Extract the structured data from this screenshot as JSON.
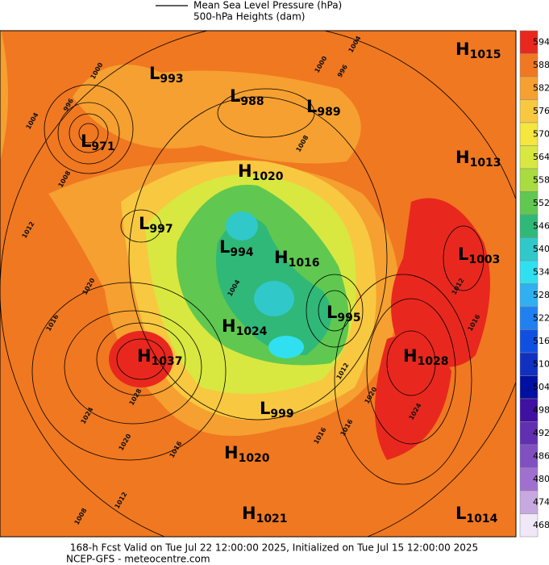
{
  "header": {
    "legend_lines": [
      "Mean Sea Level Pressure (hPa)",
      "500-hPa Heights (dam)"
    ]
  },
  "footer": {
    "lines": [
      "168-h Fcst Valid on Tue Jul 22 12:00:00 2025, Initialized on Tue Jul 15 12:00:00 2025",
      "NCEP-GFS - meteocentre.com"
    ]
  },
  "colorbar": [
    {
      "value": 594,
      "color": "#e8281e"
    },
    {
      "value": 588,
      "color": "#f07820"
    },
    {
      "value": 582,
      "color": "#f5a030"
    },
    {
      "value": 576,
      "color": "#f8c840"
    },
    {
      "value": 570,
      "color": "#f5e640"
    },
    {
      "value": 564,
      "color": "#d8e840"
    },
    {
      "value": 558,
      "color": "#a8dc40"
    },
    {
      "value": 552,
      "color": "#60c850"
    },
    {
      "value": 546,
      "color": "#30b878"
    },
    {
      "value": 540,
      "color": "#30c8c8"
    },
    {
      "value": 534,
      "color": "#30e0f0"
    },
    {
      "value": 528,
      "color": "#30b0f0"
    },
    {
      "value": 522,
      "color": "#2080f0"
    },
    {
      "value": 516,
      "color": "#1050e0"
    },
    {
      "value": 510,
      "color": "#1030c0"
    },
    {
      "value": 504,
      "color": "#0010a0"
    },
    {
      "value": 498,
      "color": "#4010a0"
    },
    {
      "value": 492,
      "color": "#6030b0"
    },
    {
      "value": 486,
      "color": "#8050c0"
    },
    {
      "value": 480,
      "color": "#a070d0"
    },
    {
      "value": 474,
      "color": "#c8a8e0"
    },
    {
      "value": 468,
      "color": "#f0e8f8"
    }
  ],
  "centers": [
    {
      "kind": "H",
      "value": 1015
    },
    {
      "kind": "L",
      "value": 993
    },
    {
      "kind": "L",
      "value": 988
    },
    {
      "kind": "L",
      "value": 989
    },
    {
      "kind": "L",
      "value": 971
    },
    {
      "kind": "H",
      "value": 1013
    },
    {
      "kind": "H",
      "value": 1020
    },
    {
      "kind": "L",
      "value": 997
    },
    {
      "kind": "L",
      "value": 994
    },
    {
      "kind": "H",
      "value": 1016
    },
    {
      "kind": "L",
      "value": 1003
    },
    {
      "kind": "L",
      "value": 995
    },
    {
      "kind": "H",
      "value": 1024
    },
    {
      "kind": "H",
      "value": 1037
    },
    {
      "kind": "H",
      "value": 1028
    },
    {
      "kind": "L",
      "value": 999
    },
    {
      "kind": "H",
      "value": 1020
    },
    {
      "kind": "H",
      "value": 1021
    },
    {
      "kind": "L",
      "value": 1014
    }
  ],
  "contour_labels": [
    1000,
    996,
    1004,
    1008,
    1012,
    1020,
    1016,
    1028,
    1024,
    1020,
    1016,
    1012,
    1008,
    1004,
    1000,
    996,
    1008,
    1004,
    1012,
    1020,
    1016,
    1024,
    1016,
    1016,
    1012
  ]
}
